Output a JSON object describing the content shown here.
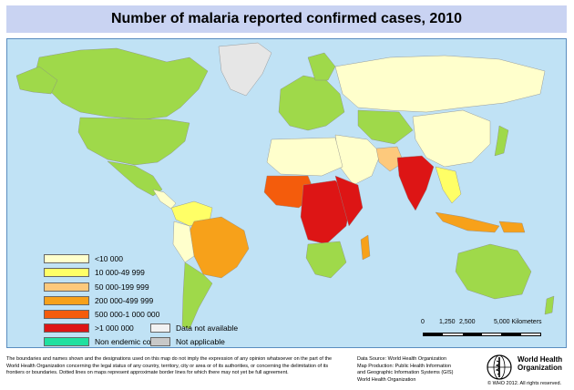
{
  "title": "Number of malaria reported confirmed cases, 2010",
  "legend": [
    {
      "label": "<10 000",
      "color": "#ffffcc"
    },
    {
      "label": "10 000-49 999",
      "color": "#ffff66"
    },
    {
      "label": "50 000-199 999",
      "color": "#fdc97c"
    },
    {
      "label": "200 000-499 999",
      "color": "#f7a11a"
    },
    {
      "label": "500 000-1 000 000",
      "color": "#f45c0c"
    },
    {
      "label": ">1 000 000",
      "color": "#dd1515"
    },
    {
      "label": "Non endemic country",
      "color": "#20e0a0"
    }
  ],
  "legend_extra": [
    {
      "label": "Data not available",
      "color": "#f2f2f2"
    },
    {
      "label": "Not applicable",
      "color": "#c8c8c8"
    }
  ],
  "scale": {
    "labels": [
      "0",
      "1,250",
      "2,500",
      "5,000 Kilometers"
    ]
  },
  "disclaimer": "The boundaries and names shown and the designations used on this map do not imply the expression of any opinion whatsoever on the part of the World Health Organization concerning the legal status of any country, territory, city or area or of its authorities, or concerning the delimitation of its frontiers or boundaries. Dotted lines on maps represent approximate border lines for which there may not yet be full agreement.",
  "source": {
    "line1": "Data Source: World Health Organization",
    "line2": "Map Production: Public Health Information",
    "line3": "and Geographic Information Systems (GIS)",
    "line4": "World Health Organization"
  },
  "organization": {
    "line1": "World Health",
    "line2": "Organization"
  },
  "copyright": "© WHO 2012. All rights reserved.",
  "colors": {
    "ocean": "#c0e2f5",
    "title_bg": "#c9d3f2",
    "non_endemic_map": "#9fd94a"
  }
}
